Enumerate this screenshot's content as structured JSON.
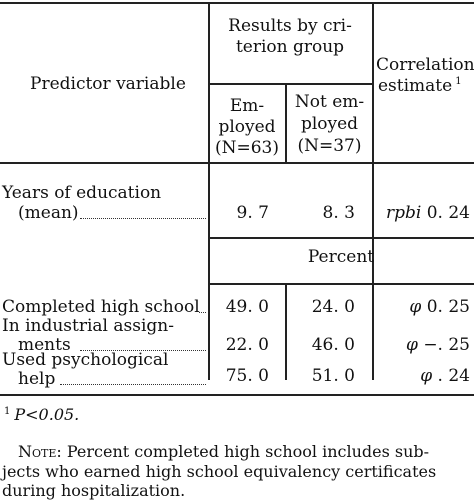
{
  "table": {
    "header": {
      "predictor": "Predictor variable",
      "results_group_line1": "Results by cri-",
      "results_group_line2": "terion group",
      "employed_line1": "Em-",
      "employed_line2": "ployed",
      "employed_line3": "(N=63)",
      "not_employed_line1": "Not em-",
      "not_employed_line2": "ployed",
      "not_employed_line3": "(N=37)",
      "correlation_line1": "Correlation",
      "correlation_line2": "estimate",
      "correlation_superscript": "1"
    },
    "section_percent": "Percent",
    "rows": [
      {
        "label_line1": "Years of education",
        "label_line2": "(mean)",
        "employed": "9. 7",
        "not_employed": "8. 3",
        "correlation_symbol": "rpbi",
        "correlation_value": "0. 24"
      },
      {
        "label_line1": "Completed high school",
        "label_line2": "",
        "employed": "49. 0",
        "not_employed": "24. 0",
        "correlation_symbol": "φ",
        "correlation_value": "0. 25"
      },
      {
        "label_line1": "In industrial assign-",
        "label_line2": "ments",
        "employed": "22. 0",
        "not_employed": "46. 0",
        "correlation_symbol": "φ",
        "correlation_value": "−. 25"
      },
      {
        "label_line1": "Used psychological",
        "label_line2": "help",
        "employed": "75. 0",
        "not_employed": "51. 0",
        "correlation_symbol": "φ",
        "correlation_value": ". 24"
      }
    ]
  },
  "footnotes": {
    "fn1_marker": "1",
    "fn1_text": "P<0.05.",
    "note_label": "Note",
    "note_line1": ": Percent completed high school includes sub-",
    "note_line2": "jects who earned high school equivalency certificates",
    "note_line3": "during hospitalization."
  }
}
